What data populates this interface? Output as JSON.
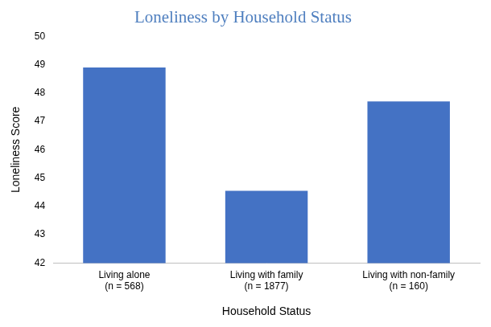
{
  "chart_data": {
    "type": "bar",
    "title": "Loneliness by Household Status",
    "categories": [
      [
        "Living alone",
        "(n = 568)"
      ],
      [
        "Living with family",
        "(n = 1877)"
      ],
      [
        "Living with non-family",
        "(n = 160)"
      ]
    ],
    "values": [
      48.9,
      44.55,
      47.7
    ],
    "color": "#4472c4",
    "x_label": "Household Status",
    "y_label": "Loneliness Score",
    "ylim": [
      42,
      50
    ],
    "yticks": [
      42,
      43,
      44,
      45,
      46,
      47,
      48,
      49,
      50
    ],
    "grid": false
  }
}
